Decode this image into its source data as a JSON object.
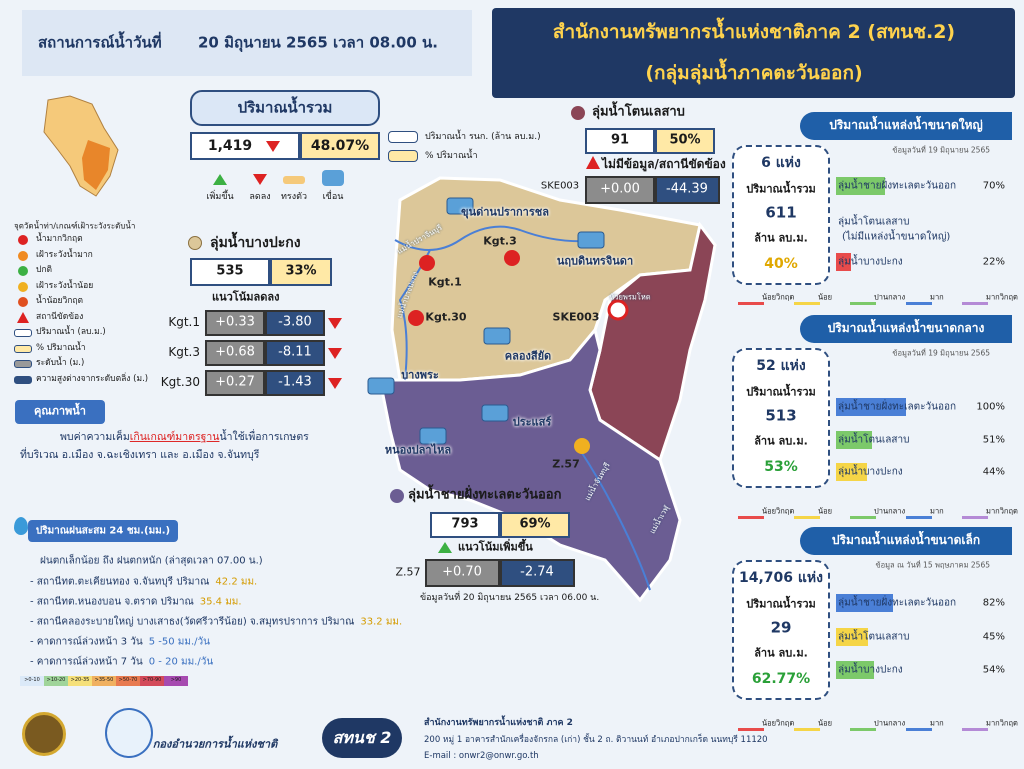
{
  "header": {
    "situation": "สถานการณ์น้ำวันที่",
    "date": "20 มิถุนายน 2565 เวลา 08.00 น.",
    "title": "สำนักงานทรัพยากรน้ำแห่งชาติภาค 2 (สทนช.2)",
    "subtitle": "(กลุ่มลุ่มน้ำภาคตะวันออก)"
  },
  "total": {
    "title": "ปริมาณน้ำรวม",
    "volume": "1,419",
    "percent": "48.07%"
  },
  "legend_top": {
    "volume": "ปริมาณน้ำ รนก. (ล้าน ลบ.ม.)",
    "percent": "% ปริมาณน้ำ",
    "up": "เพิ่มขึ้น",
    "down": "ลดลง",
    "steady": "ทรงตัว",
    "dam": "เขื่อน"
  },
  "legend_left": {
    "title": "จุดวัดน้ำท่า/เกณฑ์เฝ้าระวังระดับน้ำ",
    "items": [
      "น้ำมากวิกฤต",
      "เฝ้าระวังน้ำมาก",
      "ปกติ",
      "เฝ้าระวังน้ำน้อย",
      "น้ำน้อยวิกฤต",
      "สถานีขัดข้อง",
      "ปริมาณน้ำ (ลบ.ม.)",
      "% ปริมาณน้ำ",
      "ระดับน้ำ (ม.)",
      "ความสูงต่างจากระดับตลิ่ง (ม.)"
    ]
  },
  "quality": {
    "title": "คุณภาพน้ำ",
    "text1": "พบค่าความเค็ม",
    "highlight": "เกินเกณฑ์มาตรฐาน",
    "text2": "น้ำใช้เพื่อการเกษตร",
    "text3": "ที่บริเวณ อ.เมือง จ.ฉะเชิงเทรา และ อ.เมือง จ.จันทบุรี"
  },
  "tonlesap": {
    "name": "ลุ่มน้ำโตนเลสาบ",
    "volume": "91",
    "percent": "50%",
    "note": "ไม่มีข้อมูล/สถานีขัดข้อง",
    "station": "SKE003",
    "level": "+0.00",
    "diff": "-44.39"
  },
  "bangpakong": {
    "name": "ลุ่มน้ำบางปะกง",
    "volume": "535",
    "percent": "33%",
    "trend": "แนวโน้มลดลง",
    "stations": [
      {
        "name": "Kgt.1",
        "level": "+0.33",
        "diff": "-3.80"
      },
      {
        "name": "Kgt.3",
        "level": "+0.68",
        "diff": "-8.11"
      },
      {
        "name": "Kgt.30",
        "level": "+0.27",
        "diff": "-1.43"
      }
    ]
  },
  "eastcoast": {
    "name": "ลุ่มน้ำชายฝั่งทะเลตะวันออก",
    "volume": "793",
    "percent": "69%",
    "trend": "แนวโน้มเพิ่มขึ้น",
    "station": "Z.57",
    "level": "+0.70",
    "diff": "-2.74",
    "data_date": "ข้อมูลวันที่ 20 มิถุนายน 2565",
    "time": "เวลา 06.00 น."
  },
  "map": {
    "dams": [
      "ขุนด่านปราการชล",
      "นฤบดินทรจินดา",
      "คลองสียัด",
      "บางพระ",
      "หนองปลาไหล",
      "ประแสร์"
    ],
    "stations": [
      "Kgt.1",
      "Kgt.3",
      "Kgt.30",
      "SKE003",
      "Z.57"
    ],
    "rivers": [
      "แม่น้ำปราจีนบุรี",
      "แม่น้ำบางปะกง",
      "ห้วยพรมโหด",
      "แม่น้ำจันทบุรี",
      "แม่น้ำเวฬุ"
    ]
  },
  "rain": {
    "title": "ปริมาณฝนสะสม 24 ชม.(มม.)",
    "summary": "ฝนตกเล็กน้อย ถึง ฝนตกหนัก (ล่าสุดเวลา 07.00 น.)",
    "lines": [
      {
        "text": "- สถานีทต.ตะเคียนทอง จ.จันทบุรี ปริมาณ",
        "value": "42.2 มม."
      },
      {
        "text": "- สถานีทต.หนองบอน จ.ตราด  ปริมาณ",
        "value": "35.4 มม."
      },
      {
        "text": "- สถานีคลองระบายใหญ่ บางเสาธง(วัดศรีวารีน้อย) จ.สมุทรปราการ ปริมาณ",
        "value": "33.2 มม."
      },
      {
        "text": "- คาดการณ์ล่วงหน้า 3 วัน",
        "value": "5 -50 มม./วัน"
      },
      {
        "text": "- คาดการณ์ล่วงหน้า 7 วัน",
        "value": "0 - 20 มม./วัน"
      }
    ],
    "scale": [
      ">0-10",
      ">10-20",
      ">20-35",
      ">35-50",
      ">50-70",
      ">70-90",
      ">90"
    ]
  },
  "footer": {
    "org": "กองอำนวยการน้ำแห่งชาติ",
    "badge": "สทนช 2",
    "office": "สำนักงานทรัพยากรน้ำแห่งชาติ ภาค 2",
    "address": "200 หมู่ 1 อาคารสำนักเครื่องจักรกล (เก่า) ชั้น 2 ถ. ติวานนท์ อำเภอปากเกร็ด นนทบุรี 11120",
    "email": "E-mail : onwr2@onwr.go.th"
  },
  "reservoir_legend": [
    {
      "label": "น้อยวิกฤต",
      "color": "#e84b4b"
    },
    {
      "label": "น้อย",
      "color": "#f5d547"
    },
    {
      "label": "ปานกลาง",
      "color": "#7cc96a"
    },
    {
      "label": "มาก",
      "color": "#4a7fd6"
    },
    {
      "label": "มากวิกฤต",
      "color": "#b48ad6"
    }
  ],
  "reservoirs": [
    {
      "title": "ปริมาณน้ำแหล่งน้ำขนาดใหญ่",
      "date": "ข้อมูลวันที่ 19 มิถุนายน 2565",
      "count": "6 แห่ง",
      "label": "ปริมาณน้ำรวม",
      "volume": "611",
      "unit": "ล้าน ลบ.ม.",
      "percent": "40%",
      "categories": [
        "ลุ่มน้ำชายฝั่งทะเลตะวันออก",
        "ลุ่มน้ำโตนเลสาบ",
        "ลุ่มน้ำบางปะกง"
      ],
      "notes": [
        null,
        "(ไม่มีแหล่งน้ำขนาดใหญ่)",
        null
      ],
      "values": [
        70,
        null,
        22
      ],
      "value_labels": [
        "70%",
        null,
        "22%"
      ],
      "colors": [
        "#7cc96a",
        null,
        "#e84b4b"
      ]
    },
    {
      "title": "ปริมาณน้ำแหล่งน้ำขนาดกลาง",
      "date": "ข้อมูลวันที่ 19 มิถุนายน 2565",
      "count": "52 แห่ง",
      "label": "ปริมาณน้ำรวม",
      "volume": "513",
      "unit": "ล้าน ลบ.ม.",
      "percent": "53%",
      "categories": [
        "ลุ่มน้ำชายฝั่งทะเลตะวันออก",
        "ลุ่มน้ำโตนเลสาบ",
        "ลุ่มน้ำบางปะกง"
      ],
      "notes": [
        null,
        null,
        null
      ],
      "values": [
        100,
        51,
        44
      ],
      "value_labels": [
        "100%",
        "51%",
        "44%"
      ],
      "colors": [
        "#4a7fd6",
        "#7cc96a",
        "#f5d547"
      ]
    },
    {
      "title": "ปริมาณน้ำแหล่งน้ำขนาดเล็ก",
      "date": "ข้อมูล ณ วันที่ 15 พฤษภาคม 2565",
      "count": "14,706 แห่ง",
      "label": "ปริมาณน้ำรวม",
      "volume": "29",
      "unit": "ล้าน ลบ.ม.",
      "percent": "62.77%",
      "categories": [
        "ลุ่มน้ำชายฝั่งทะเลตะวันออก",
        "ลุ่มน้ำโตนเลสาบ",
        "ลุ่มน้ำบางปะกง"
      ],
      "notes": [
        null,
        null,
        null
      ],
      "values": [
        82,
        45,
        54
      ],
      "value_labels": [
        "82%",
        "45%",
        "54%"
      ],
      "colors": [
        "#4a7fd6",
        "#f5d547",
        "#7cc96a"
      ]
    }
  ]
}
